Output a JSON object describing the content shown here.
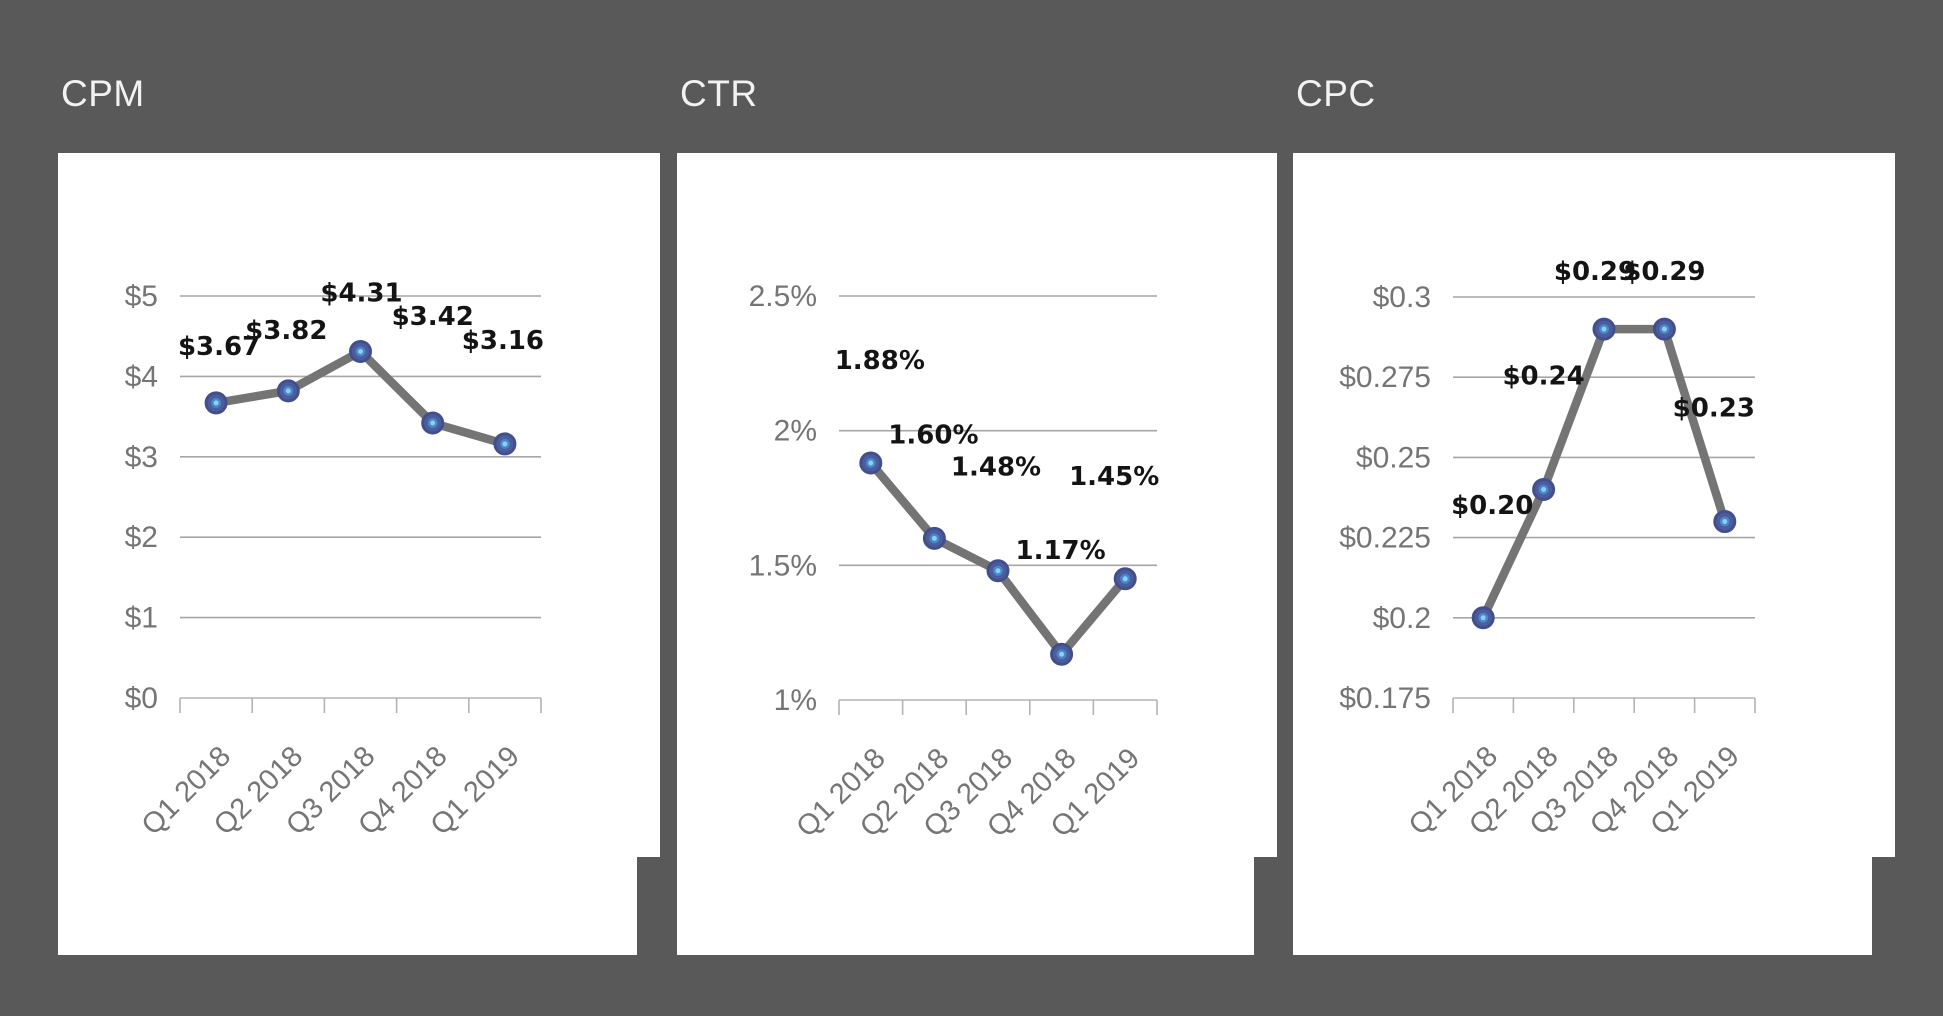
{
  "page": {
    "background_color": "#595959",
    "card_color": "#ffffff"
  },
  "colors": {
    "line": "#747474",
    "marker_fill": "#4d5c9c",
    "marker_ring": "#41508c",
    "marker_halo": "#4b87c8",
    "marker_dot": "#86d2f4",
    "gridline": "#a6a6a6",
    "axis": "#b3b3b3",
    "axis_label": "#757575",
    "data_label": "#141414",
    "title": "#f2f2f2"
  },
  "chart_data": [
    {
      "type": "line",
      "title": "CPM",
      "categories": [
        "Q1 2018",
        "Q2 2018",
        "Q3 2018",
        "Q4 2018",
        "Q1 2019"
      ],
      "values": [
        3.67,
        3.82,
        4.31,
        3.42,
        3.16
      ],
      "data_labels": [
        "$3.67",
        "$3.82",
        "$4.31",
        "$3.42",
        "$3.16"
      ],
      "y_tick_labels": [
        "$5",
        "$4",
        "$3",
        "$2",
        "$1",
        "$0"
      ],
      "y_tick_values": [
        5,
        4,
        3,
        2,
        1,
        0
      ],
      "ylim": [
        0,
        5
      ],
      "xlabel": "",
      "ylabel": "",
      "grid": true,
      "legend": "none"
    },
    {
      "type": "line",
      "title": "CTR",
      "categories": [
        "Q1 2018",
        "Q2 2018",
        "Q3 2018",
        "Q4 2018",
        "Q1 2019"
      ],
      "values": [
        1.88,
        1.6,
        1.48,
        1.17,
        1.45
      ],
      "data_labels": [
        "1.88%",
        "1.60%",
        "1.48%",
        "1.17%",
        "1.45%"
      ],
      "y_tick_labels": [
        "2.5%",
        "2%",
        "1.5%",
        "1%"
      ],
      "y_tick_values": [
        2.5,
        2,
        1.5,
        1
      ],
      "ylim": [
        1,
        2.5
      ],
      "xlabel": "",
      "ylabel": "",
      "grid": true,
      "legend": "none"
    },
    {
      "type": "line",
      "title": "CPC",
      "categories": [
        "Q1 2018",
        "Q2 2018",
        "Q3 2018",
        "Q4 2018",
        "Q1 2019"
      ],
      "values": [
        0.2,
        0.24,
        0.29,
        0.29,
        0.23
      ],
      "data_labels": [
        "$0.20",
        "$0.24",
        "$0.29",
        "$0.29",
        "$0.23"
      ],
      "y_tick_labels": [
        "$0.3",
        "$0.275",
        "$0.25",
        "$0.225",
        "$0.2",
        "$0.175"
      ],
      "y_tick_values": [
        0.3,
        0.275,
        0.25,
        0.225,
        0.2,
        0.175
      ],
      "ylim": [
        0.175,
        0.3
      ],
      "xlabel": "",
      "ylabel": "",
      "grid": true,
      "legend": "none"
    }
  ]
}
